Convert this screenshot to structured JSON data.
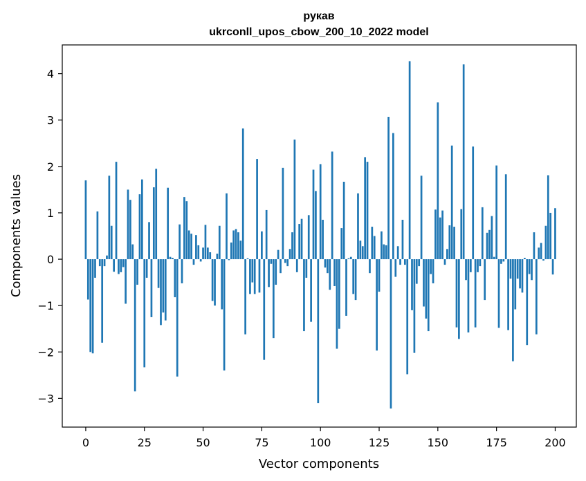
{
  "chart_data": {
    "type": "bar",
    "title": "рукав",
    "subtitle": "ukrconll_upos_cbow_200_10_2022 model",
    "xlabel": "Vector components",
    "ylabel": "Components values",
    "xlim": [
      -10,
      209
    ],
    "ylim": [
      -3.62,
      4.62
    ],
    "xticks": [
      0,
      25,
      50,
      75,
      100,
      125,
      150,
      175,
      200
    ],
    "yticks": [
      -3,
      -2,
      -1,
      0,
      1,
      2,
      3,
      4
    ],
    "ytick_labels": [
      "−3",
      "−2",
      "−1",
      "0",
      "1",
      "2",
      "3",
      "4"
    ],
    "grid": false,
    "bar_color": "#1f77b4",
    "values": [
      1.7,
      -0.87,
      -2.0,
      -2.03,
      -0.4,
      1.03,
      -0.15,
      -1.8,
      -0.15,
      0.08,
      1.8,
      0.72,
      -0.27,
      2.1,
      -0.32,
      -0.28,
      -0.17,
      -0.96,
      1.5,
      1.28,
      0.32,
      -2.85,
      -0.55,
      1.4,
      1.72,
      -2.33,
      -0.4,
      0.8,
      -1.25,
      1.55,
      1.95,
      -0.62,
      -1.42,
      -1.15,
      -1.32,
      1.54,
      0.05,
      0.03,
      -0.82,
      -2.53,
      0.75,
      -0.52,
      1.34,
      1.25,
      0.62,
      0.55,
      -0.12,
      0.52,
      0.3,
      -0.05,
      0.25,
      0.74,
      0.25,
      0.15,
      -0.9,
      -1.0,
      0.12,
      0.72,
      -1.08,
      -2.4,
      1.42,
      -0.02,
      0.36,
      0.62,
      0.65,
      0.58,
      0.4,
      2.82,
      -1.62,
      0.02,
      -0.75,
      -0.5,
      -0.75,
      2.16,
      -0.72,
      0.6,
      -2.17,
      1.06,
      -0.6,
      -0.1,
      -1.7,
      -0.55,
      0.2,
      -0.3,
      1.97,
      -0.08,
      -0.15,
      0.22,
      0.58,
      2.58,
      -0.28,
      0.76,
      0.87,
      -1.55,
      -0.4,
      0.95,
      -1.35,
      1.93,
      1.47,
      -3.1,
      2.05,
      0.85,
      -0.18,
      -0.3,
      -0.66,
      2.32,
      -0.58,
      -1.93,
      -1.5,
      0.67,
      1.67,
      -1.22,
      0.02,
      0.05,
      -0.75,
      -0.88,
      1.42,
      0.4,
      0.28,
      2.2,
      2.1,
      -0.3,
      0.7,
      0.5,
      -1.97,
      -0.7,
      0.6,
      0.32,
      0.3,
      3.07,
      -3.22,
      2.72,
      -0.38,
      0.28,
      -0.12,
      0.85,
      -0.12,
      -2.48,
      4.27,
      -1.1,
      -2.02,
      -0.53,
      -0.15,
      1.8,
      -1.02,
      -1.28,
      -1.55,
      -0.32,
      -0.52,
      1.07,
      3.38,
      0.9,
      1.05,
      -0.12,
      0.22,
      0.73,
      2.45,
      0.7,
      -1.47,
      -1.72,
      1.08,
      4.2,
      -0.45,
      -1.58,
      -0.28,
      2.43,
      -1.47,
      -0.28,
      -0.15,
      1.12,
      -0.88,
      0.57,
      0.63,
      0.93,
      0.05,
      2.02,
      -1.48,
      -0.1,
      -0.05,
      1.83,
      -1.53,
      -0.42,
      -2.2,
      -1.08,
      -0.42,
      -0.63,
      -0.72,
      0.03,
      -1.85,
      -0.32,
      -0.45,
      0.58,
      -1.62,
      0.25,
      0.35,
      -0.03,
      0.72,
      1.81,
      1.0,
      -0.33,
      1.1
    ]
  }
}
